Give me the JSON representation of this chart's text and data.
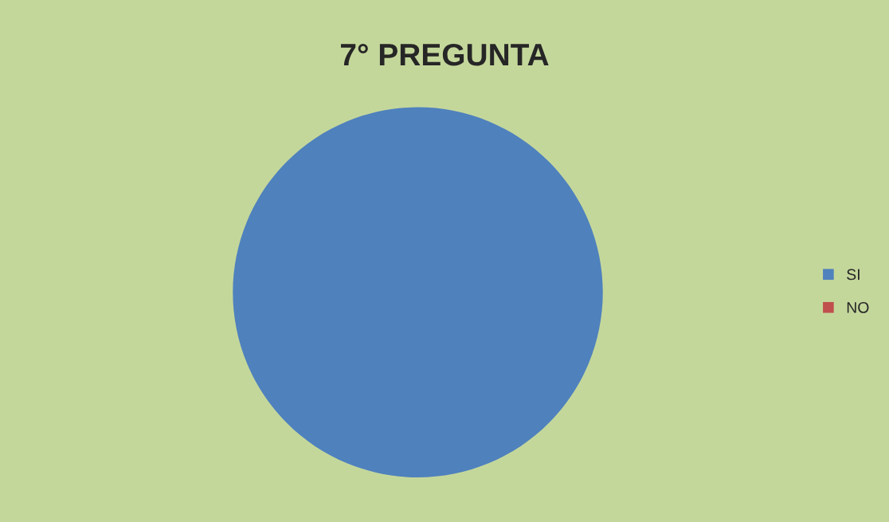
{
  "chart_data": {
    "type": "pie",
    "title": "7° PREGUNTA",
    "categories": [
      "SI",
      "NO"
    ],
    "values": [
      100,
      0
    ],
    "colors": [
      "#4f81bd",
      "#c0504d"
    ],
    "legend": "right"
  }
}
